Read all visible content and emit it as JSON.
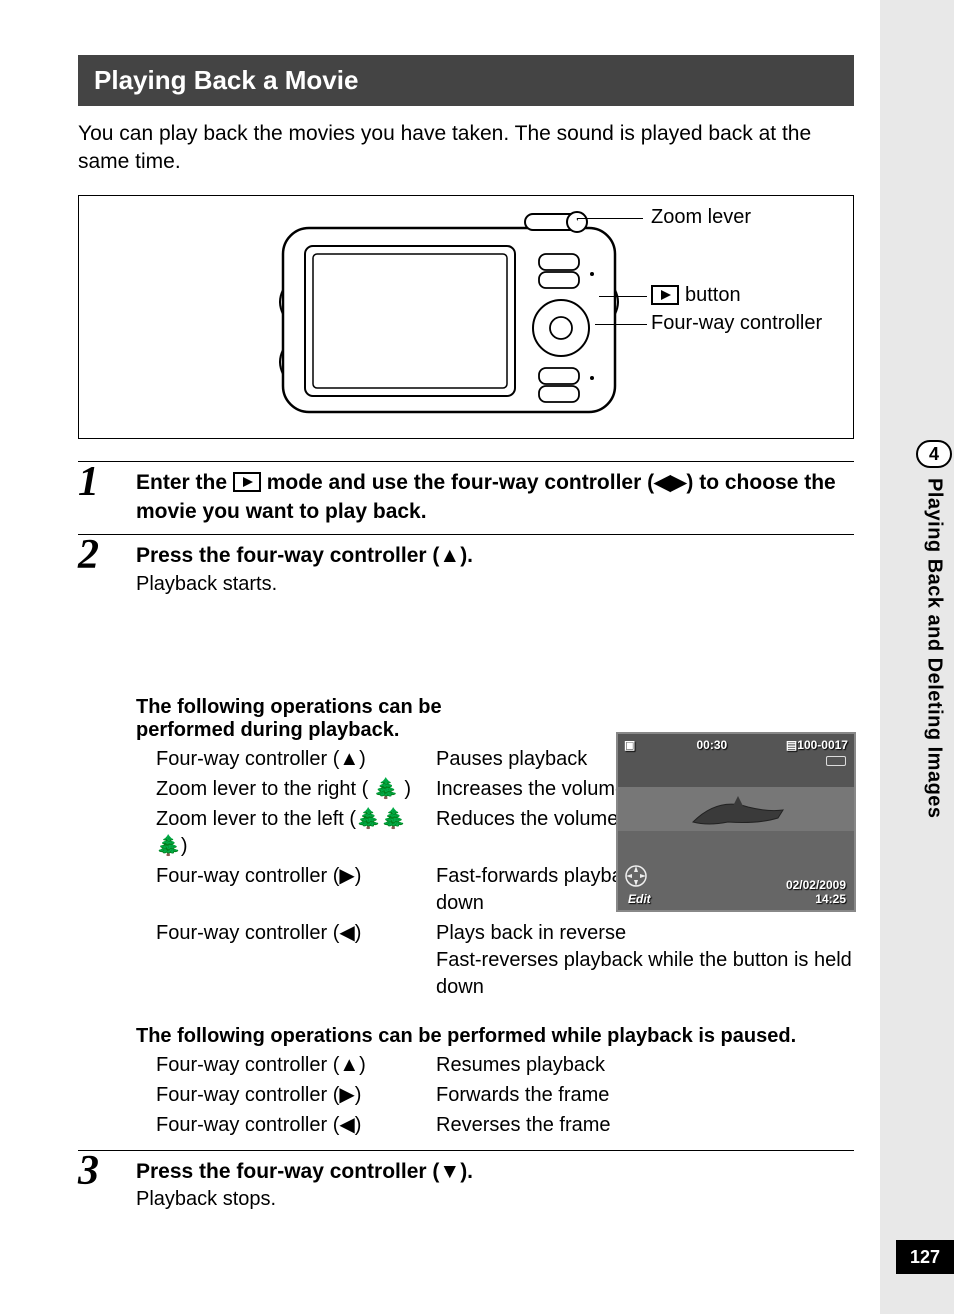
{
  "page_number": "127",
  "chapter_number": "4",
  "side_label": "Playing Back and Deleting Images",
  "heading": "Playing Back a Movie",
  "intro": "You can play back the movies you have taken. The sound is played back at the same time.",
  "diagram": {
    "callout_zoom": "Zoom lever",
    "callout_play_btn": "button",
    "callout_controller": "Four-way controller"
  },
  "screenshot": {
    "time": "00:30",
    "file": "100-0017",
    "date": "02/02/2009",
    "clock": "14:25",
    "edit": "Edit"
  },
  "steps": [
    {
      "num": "1",
      "title_pre": "Enter the ",
      "title_post": " mode and use the four-way controller (◀▶) to choose the movie you want to play back."
    },
    {
      "num": "2",
      "title": "Press the four-way controller (▲).",
      "sub": "Playback starts.",
      "sub1_head": "The following operations can be performed during playback.",
      "ops1": [
        {
          "l": "Four-way controller (▲)",
          "r": "Pauses playback"
        },
        {
          "l": "Zoom lever to the right ( 🌲 )",
          "r": "Increases the volume"
        },
        {
          "l": "Zoom lever to the left (🌲🌲🌲)",
          "r": "Reduces the volume"
        },
        {
          "l": "Four-way controller (▶)",
          "r": "Fast-forwards playback while the button is held down"
        },
        {
          "l": "Four-way controller (◀)",
          "r": "Plays back in reverse\nFast-reverses playback while the button is held down"
        }
      ],
      "sub2_head": "The following operations can be performed while playback is paused.",
      "ops2": [
        {
          "l": "Four-way controller (▲)",
          "r": "Resumes playback"
        },
        {
          "l": "Four-way controller (▶)",
          "r": "Forwards the frame"
        },
        {
          "l": "Four-way controller (◀)",
          "r": "Reverses the frame"
        }
      ]
    },
    {
      "num": "3",
      "title": "Press the four-way controller (▼).",
      "sub": "Playback stops."
    }
  ],
  "colors": {
    "heading_bg": "#444444",
    "page_bg": "#ffffff",
    "outer_bg": "#e8e8e8"
  }
}
